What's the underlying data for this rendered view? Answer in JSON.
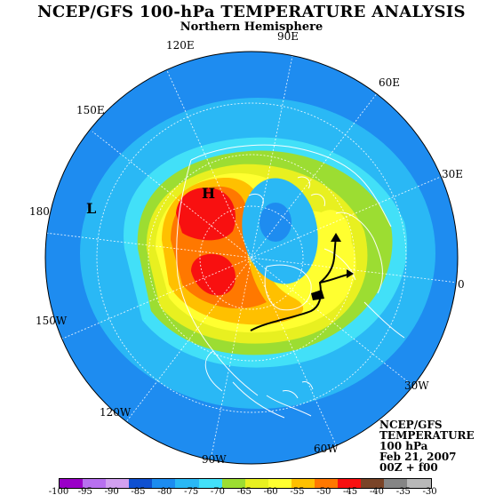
{
  "title": "NCEP/GFS 100-hPa TEMPERATURE ANALYSIS",
  "subtitle": "Northern Hemisphere",
  "lon_labels": [
    "90E",
    "120E",
    "60E",
    "150E",
    "30E",
    "180",
    "0",
    "150W",
    "30W",
    "120W",
    "60W",
    "90W"
  ],
  "pressure_labels": {
    "low": "L",
    "high": "H"
  },
  "info": [
    "NCEP/GFS",
    "TEMPERATURE",
    "100 hPa",
    "Feb 21, 2007",
    "00Z + f00"
  ],
  "colorbar": {
    "labels": [
      "-100",
      "-95",
      "-90",
      "-85",
      "-80",
      "-75",
      "-70",
      "-65",
      "-60",
      "-55",
      "-50",
      "-45",
      "-40",
      "-35",
      "-30"
    ],
    "colors": [
      "#9a00c8",
      "#b870f0",
      "#d2a0f0",
      "#0f50d0",
      "#1c8cf0",
      "#2ab8f5",
      "#42e0f8",
      "#9cdd32",
      "#e8f020",
      "#ffff30",
      "#ffc000",
      "#ff7800",
      "#f81010",
      "#7a4428",
      "#858585",
      "#b8b8b8"
    ]
  },
  "map_colors": {
    "outer_ring": "#1e8cf0",
    "mid_ring": "#2ab8f5",
    "light_cyan": "#42e0f8",
    "green": "#9cdd32",
    "yellow_green": "#e8f020",
    "yellow": "#ffff30",
    "orange_light": "#ffc000",
    "orange": "#ff7800",
    "red": "#f81010"
  }
}
